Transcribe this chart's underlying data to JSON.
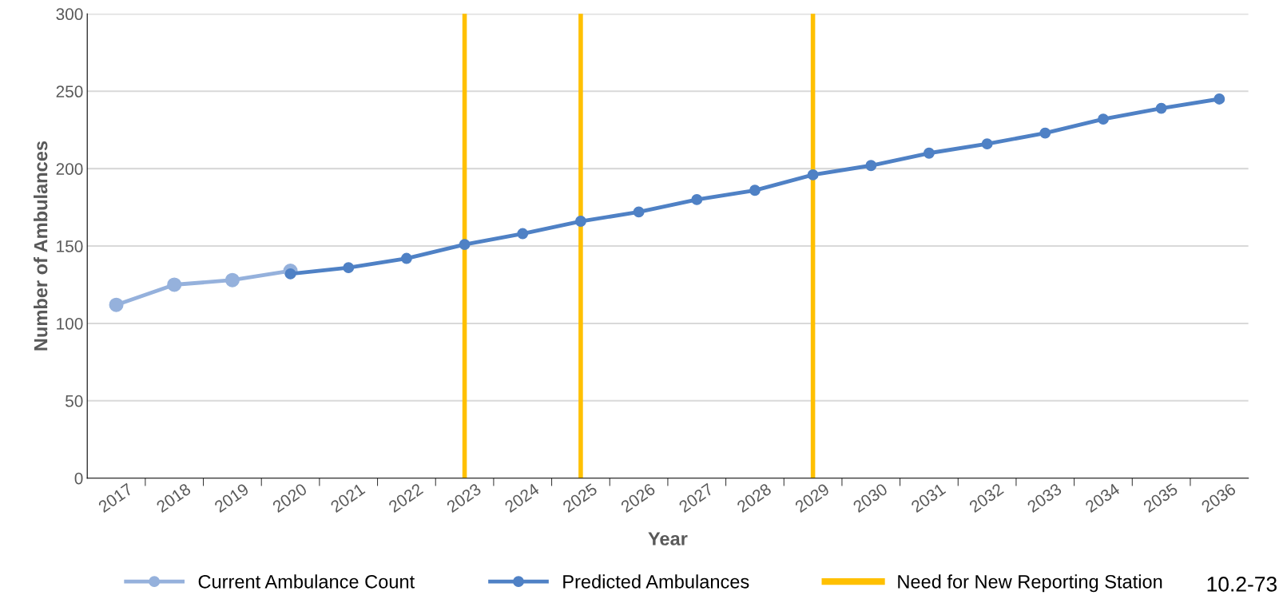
{
  "chart_data": {
    "type": "line",
    "xlabel": "Year",
    "ylabel": "Number of Ambulances",
    "categories": [
      "2017",
      "2018",
      "2019",
      "2020",
      "2021",
      "2022",
      "2023",
      "2024",
      "2025",
      "2026",
      "2027",
      "2028",
      "2029",
      "2030",
      "2031",
      "2032",
      "2033",
      "2034",
      "2035",
      "2036"
    ],
    "series": [
      {
        "name": "Current Ambulance Count",
        "color": "#95b1dc",
        "values": [
          112,
          125,
          128,
          134,
          null,
          null,
          null,
          null,
          null,
          null,
          null,
          null,
          null,
          null,
          null,
          null,
          null,
          null,
          null,
          null
        ]
      },
      {
        "name": "Predicted Ambulances",
        "color": "#4f81c5",
        "values": [
          null,
          null,
          null,
          132,
          136,
          142,
          151,
          158,
          166,
          172,
          180,
          186,
          196,
          202,
          210,
          216,
          223,
          232,
          239,
          245
        ]
      }
    ],
    "ref_lines": [
      {
        "axis": "x",
        "value": "2023",
        "label": "Need for New Reporting Station",
        "color": "#ffc000"
      },
      {
        "axis": "x",
        "value": "2025",
        "color": "#ffc000"
      },
      {
        "axis": "x",
        "value": "2029",
        "color": "#ffc000"
      }
    ],
    "ylim": [
      0,
      300
    ],
    "yticks": [
      0,
      50,
      100,
      150,
      200,
      250,
      300
    ],
    "grid": "y",
    "legend": "bottom",
    "marker": "circle",
    "line_style": "solid",
    "annotations": [
      "10.2-73"
    ]
  }
}
